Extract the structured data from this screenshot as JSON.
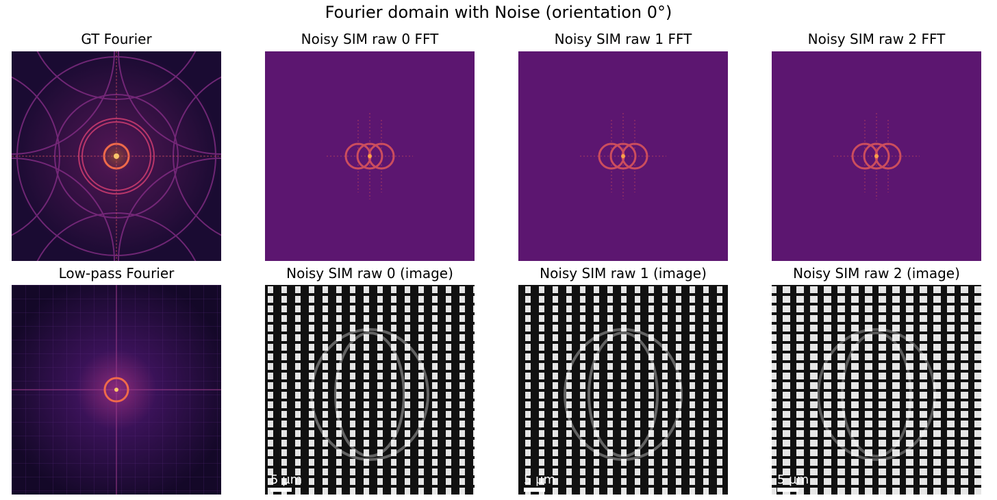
{
  "figure": {
    "title": "Fourier domain with Noise (orientation 0°)"
  },
  "panels": [
    {
      "id": "gt-fourier",
      "title": "GT Fourier",
      "kind": "fourier-gt",
      "colormap": "inferno"
    },
    {
      "id": "noisy-fft-0",
      "title": "Noisy SIM raw 0 FFT",
      "kind": "fourier-noisy",
      "colormap": "inferno"
    },
    {
      "id": "noisy-fft-1",
      "title": "Noisy SIM raw 1 FFT",
      "kind": "fourier-noisy",
      "colormap": "inferno"
    },
    {
      "id": "noisy-fft-2",
      "title": "Noisy SIM raw 2 FFT",
      "kind": "fourier-noisy",
      "colormap": "inferno"
    },
    {
      "id": "lowpass-fourier",
      "title": "Low-pass Fourier",
      "kind": "fourier-lowpass",
      "colormap": "inferno"
    },
    {
      "id": "noisy-image-0",
      "title": "Noisy SIM raw 0 (image)",
      "kind": "sim-image",
      "colormap": "gray",
      "scalebar": "5 µm"
    },
    {
      "id": "noisy-image-1",
      "title": "Noisy SIM raw 1 (image)",
      "kind": "sim-image",
      "colormap": "gray",
      "scalebar": "5 µm"
    },
    {
      "id": "noisy-image-2",
      "title": "Noisy SIM raw 2 (image)",
      "kind": "sim-image",
      "colormap": "gray",
      "scalebar": "5 µm"
    }
  ],
  "colors": {
    "inferno-dark": "#1a0b32",
    "noisy-bg": "#5c1670",
    "ring": "#e0605a",
    "stripe": "#e6e6e6"
  }
}
